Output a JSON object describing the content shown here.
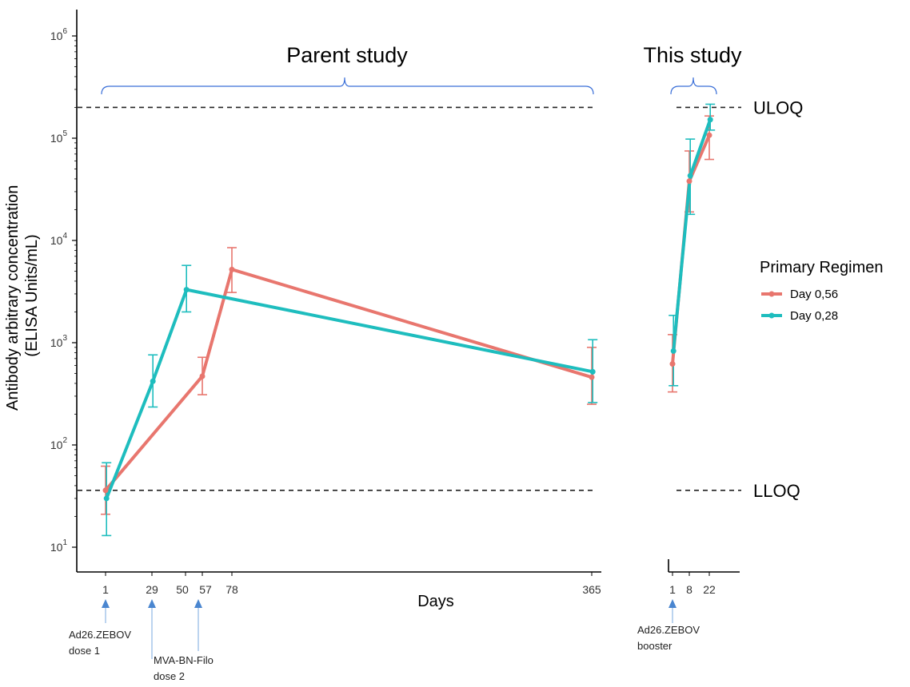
{
  "chart_data": {
    "type": "line",
    "ylabel_line1": "Antibody arbitrary concentration",
    "ylabel_line2": "(ELISA Units/mL)",
    "xlabel": "Days",
    "y_scale": "log",
    "ylim": [
      5,
      1000000
    ],
    "grid": false,
    "legend": {
      "title": "Primary Regimen",
      "placement": "right"
    },
    "panels": [
      {
        "label": "Parent study",
        "x_ticks": [
          1,
          29,
          50,
          57,
          78,
          365
        ],
        "x_tick_labels": [
          "1",
          "29",
          "50",
          "57",
          "78",
          "365"
        ]
      },
      {
        "label": "This study",
        "x_ticks": [
          1,
          8,
          22
        ],
        "x_tick_labels": [
          "1",
          "8",
          "22"
        ]
      }
    ],
    "y_tick_labels": [
      {
        "value": 10,
        "base": "10",
        "exp": "1"
      },
      {
        "value": 100,
        "base": "10",
        "exp": "2"
      },
      {
        "value": 1000,
        "base": "10",
        "exp": "3"
      },
      {
        "value": 10000,
        "base": "10",
        "exp": "4"
      },
      {
        "value": 100000,
        "base": "10",
        "exp": "5"
      },
      {
        "value": 1000000,
        "base": "10",
        "exp": "6"
      }
    ],
    "reference_lines": [
      {
        "label": "ULOQ",
        "value": 200000
      },
      {
        "label": "LLOQ",
        "value": 36
      }
    ],
    "series": [
      {
        "name": "Day 0,56",
        "color": "#e8766e",
        "panels": [
          {
            "x": [
              1,
              57,
              78,
              365
            ],
            "y": [
              36,
              470,
              5200,
              460
            ],
            "err_low": [
              21,
              310,
              3100,
              250
            ],
            "err_high": [
              62,
              720,
              8500,
              900
            ]
          },
          {
            "x": [
              1,
              8,
              22
            ],
            "y": [
              620,
              38000,
              107000
            ],
            "err_low": [
              330,
              19000,
              62000
            ],
            "err_high": [
              1200,
              75000,
              165000
            ]
          }
        ]
      },
      {
        "name": "Day 0,28",
        "color": "#1ebdbe",
        "panels": [
          {
            "x": [
              1,
              29,
              50,
              365
            ],
            "y": [
              30,
              420,
              3300,
              520
            ],
            "err_low": [
              13,
              235,
              2000,
              260
            ],
            "err_high": [
              67,
              760,
              5700,
              1070
            ]
          },
          {
            "x": [
              1,
              8,
              22
            ],
            "y": [
              830,
              43000,
              152000
            ],
            "err_low": [
              380,
              18000,
              120000
            ],
            "err_high": [
              1850,
              98000,
              215000
            ]
          }
        ]
      }
    ],
    "annotations": [
      {
        "panel": 0,
        "x": 1,
        "lines": [
          "Ad26.ZEBOV",
          "dose 1"
        ]
      },
      {
        "panel": 0,
        "x": 29,
        "lines": [
          "MVA-BN-Filo",
          "dose 2"
        ]
      },
      {
        "panel": 0,
        "x": 57,
        "lines": []
      },
      {
        "panel": 1,
        "x": 1,
        "lines": [
          "Ad26.ZEBOV",
          "booster"
        ]
      }
    ]
  }
}
